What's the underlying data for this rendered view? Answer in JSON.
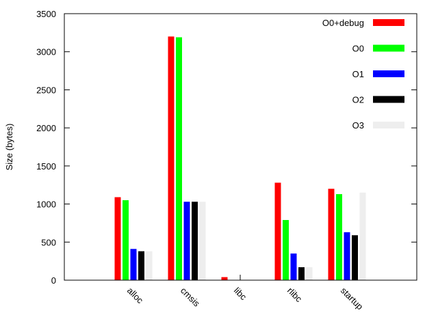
{
  "chart_data": {
    "type": "bar",
    "title": "",
    "xlabel": "",
    "ylabel": "Size (bytes)",
    "ylim": [
      0,
      3500
    ],
    "yticks": [
      0,
      500,
      1000,
      1500,
      2000,
      2500,
      3000,
      3500
    ],
    "categories": [
      "alloc",
      "cmsis",
      "libc",
      "rlibc",
      "startup"
    ],
    "grid": false,
    "legend_position": "top-right",
    "series": [
      {
        "name": "O0+debug",
        "color": "#ff0000",
        "values": [
          1090,
          3200,
          40,
          1280,
          1200
        ]
      },
      {
        "name": "O0",
        "color": "#00ff00",
        "values": [
          1050,
          3190,
          0,
          790,
          1130
        ]
      },
      {
        "name": "O1",
        "color": "#0000ff",
        "values": [
          410,
          1030,
          0,
          350,
          630
        ]
      },
      {
        "name": "O2",
        "color": "#000000",
        "values": [
          380,
          1030,
          0,
          170,
          590
        ]
      },
      {
        "name": "O3",
        "color": "#eeeeee",
        "values": [
          380,
          1030,
          0,
          170,
          1150
        ]
      }
    ]
  }
}
